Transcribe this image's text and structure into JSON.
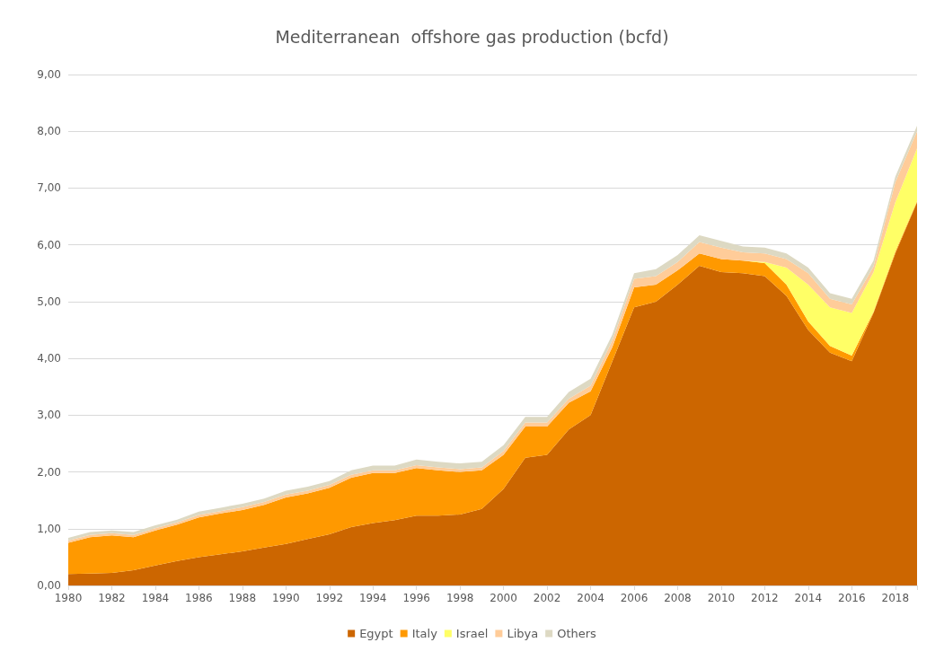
{
  "chart_data": {
    "type": "area",
    "stacked": true,
    "title": "Mediterranean  offshore gas production (bcfd)",
    "categories": [
      "1980",
      null,
      "1982",
      null,
      "1984",
      null,
      "1986",
      null,
      "1988",
      null,
      "1990",
      null,
      "1992",
      null,
      "1994",
      null,
      "1996",
      null,
      "1998",
      null,
      "2000",
      null,
      "2002",
      null,
      "2004",
      null,
      "2006",
      null,
      "2008",
      null,
      "2010",
      null,
      "2012",
      null,
      "2014",
      null,
      "2016",
      null,
      "2018",
      null
    ],
    "series": [
      {
        "name": "Egypt",
        "color": "#cc6600",
        "values": [
          0.2,
          0.21,
          0.22,
          0.27,
          0.35,
          0.43,
          0.5,
          0.55,
          0.6,
          0.67,
          0.73,
          0.82,
          0.9,
          1.03,
          1.1,
          1.15,
          1.23,
          1.23,
          1.25,
          1.35,
          1.7,
          2.25,
          2.3,
          2.75,
          3.0,
          3.95,
          4.9,
          5.0,
          5.3,
          5.63,
          5.52,
          5.5,
          5.45,
          5.1,
          4.5,
          4.1,
          3.95,
          4.8,
          5.85,
          6.75
        ]
      },
      {
        "name": "Italy",
        "color": "#ff9900",
        "values": [
          0.55,
          0.64,
          0.66,
          0.58,
          0.62,
          0.64,
          0.7,
          0.72,
          0.73,
          0.75,
          0.82,
          0.8,
          0.82,
          0.87,
          0.88,
          0.83,
          0.84,
          0.8,
          0.75,
          0.68,
          0.6,
          0.55,
          0.5,
          0.47,
          0.42,
          0.25,
          0.35,
          0.3,
          0.25,
          0.22,
          0.23,
          0.22,
          0.23,
          0.2,
          0.15,
          0.12,
          0.1,
          0.02,
          0.03,
          0.02
        ]
      },
      {
        "name": "Israel",
        "color": "#ffff66",
        "values": [
          0,
          0,
          0,
          0,
          0,
          0,
          0,
          0,
          0,
          0,
          0,
          0,
          0,
          0,
          0,
          0,
          0,
          0,
          0,
          0,
          0,
          0,
          0,
          0,
          0,
          0,
          0,
          0,
          0,
          0,
          0,
          0,
          0.02,
          0.3,
          0.65,
          0.68,
          0.75,
          0.7,
          0.87,
          0.93
        ]
      },
      {
        "name": "Libya",
        "color": "#ffcc99",
        "values": [
          0.04,
          0.04,
          0.04,
          0.04,
          0.04,
          0.04,
          0.04,
          0.04,
          0.05,
          0.05,
          0.05,
          0.05,
          0.05,
          0.05,
          0.05,
          0.05,
          0.05,
          0.05,
          0.05,
          0.05,
          0.07,
          0.07,
          0.07,
          0.07,
          0.1,
          0.12,
          0.15,
          0.15,
          0.15,
          0.2,
          0.2,
          0.15,
          0.15,
          0.15,
          0.2,
          0.15,
          0.15,
          0.1,
          0.35,
          0.3
        ]
      },
      {
        "name": "Others",
        "color": "#ddd9c3",
        "values": [
          0.05,
          0.05,
          0.05,
          0.05,
          0.05,
          0.05,
          0.06,
          0.06,
          0.06,
          0.06,
          0.07,
          0.07,
          0.07,
          0.08,
          0.08,
          0.08,
          0.1,
          0.1,
          0.1,
          0.1,
          0.1,
          0.1,
          0.1,
          0.12,
          0.12,
          0.1,
          0.1,
          0.12,
          0.12,
          0.12,
          0.12,
          0.1,
          0.1,
          0.1,
          0.1,
          0.1,
          0.1,
          0.1,
          0.1,
          0.1
        ]
      }
    ],
    "ylim": [
      0,
      9
    ],
    "yticks": [
      {
        "value": 0,
        "label": "0,00"
      },
      {
        "value": 1,
        "label": "1,00"
      },
      {
        "value": 2,
        "label": "2,00"
      },
      {
        "value": 3,
        "label": "3,00"
      },
      {
        "value": 4,
        "label": "4,00"
      },
      {
        "value": 5,
        "label": "5,00"
      },
      {
        "value": 6,
        "label": "6,00"
      },
      {
        "value": 7,
        "label": "7,00"
      },
      {
        "value": 8,
        "label": "8,00"
      },
      {
        "value": 9,
        "label": "9,00"
      }
    ],
    "grid": "y",
    "legend": "bottom"
  }
}
